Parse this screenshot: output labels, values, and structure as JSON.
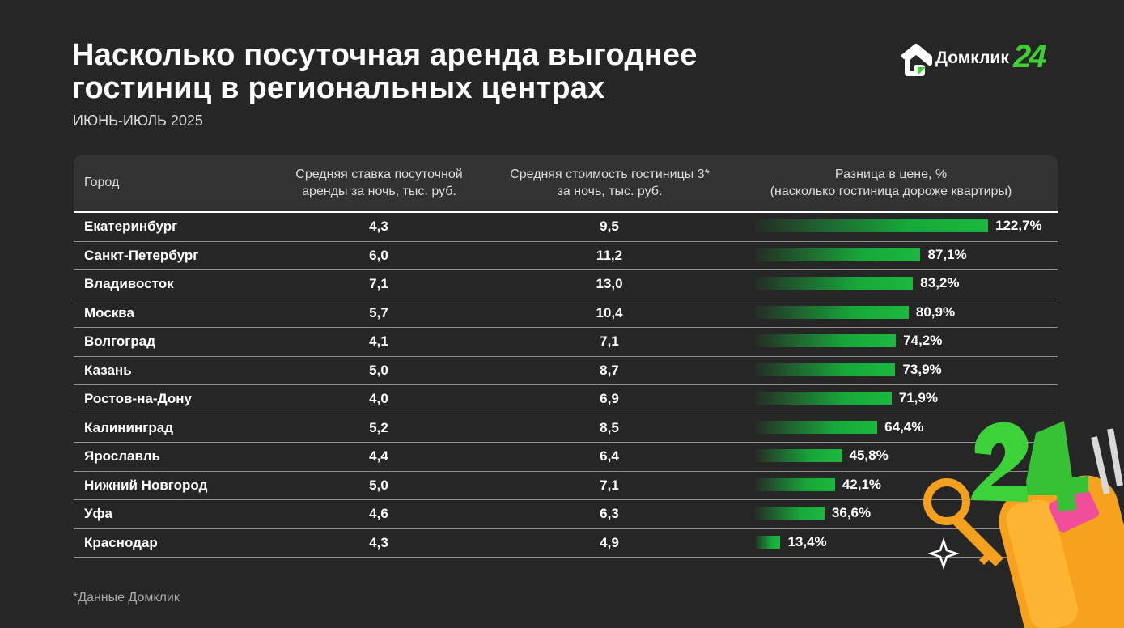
{
  "header": {
    "title_line1": "Насколько посуточная аренда выгоднее",
    "title_line2": "гостиниц в региональных центрах",
    "subtitle": "ИЮНЬ-ИЮЛЬ 2025"
  },
  "logo": {
    "text": "Домклик",
    "badge": "24",
    "accent": "#3fce33"
  },
  "table": {
    "headers": {
      "city": "Город",
      "rent_line1": "Средняя ставка посуточной",
      "rent_line2": "аренды за ночь, тыс. руб.",
      "hotel_line1": "Средняя стоимость гостиницы 3*",
      "hotel_line2": "за ночь, тыс. руб.",
      "diff_line1": "Разница в цене, %",
      "diff_line2": "(насколько гостиница дороже квартиры)"
    },
    "rows": [
      {
        "city": "Екатеринбург",
        "rent": "4,3",
        "hotel": "9,5",
        "diff_label": "122,7%"
      },
      {
        "city": "Санкт-Петербург",
        "rent": "6,0",
        "hotel": "11,2",
        "diff_label": "87,1%"
      },
      {
        "city": "Владивосток",
        "rent": "7,1",
        "hotel": "13,0",
        "diff_label": "83,2%"
      },
      {
        "city": "Москва",
        "rent": "5,7",
        "hotel": "10,4",
        "diff_label": "80,9%"
      },
      {
        "city": "Волгоград",
        "rent": "4,1",
        "hotel": "7,1",
        "diff_label": "74,2%"
      },
      {
        "city": "Казань",
        "rent": "5,0",
        "hotel": "8,7",
        "diff_label": "73,9%"
      },
      {
        "city": "Ростов-на-Дону",
        "rent": "4,0",
        "hotel": "6,9",
        "diff_label": "71,9%"
      },
      {
        "city": "Калининград",
        "rent": "5,2",
        "hotel": "8,5",
        "diff_label": "64,4%"
      },
      {
        "city": "Ярославль",
        "rent": "4,4",
        "hotel": "6,4",
        "diff_label": "45,8%"
      },
      {
        "city": "Нижний Новгород",
        "rent": "5,0",
        "hotel": "7,1",
        "diff_label": "42,1%"
      },
      {
        "city": "Уфа",
        "rent": "4,6",
        "hotel": "6,3",
        "diff_label": "36,6%"
      },
      {
        "city": "Краснодар",
        "rent": "4,3",
        "hotel": "4,9",
        "diff_label": "13,4%"
      }
    ]
  },
  "chart_data": {
    "type": "table",
    "columns": [
      "Город",
      "Средняя ставка посуточной аренды за ночь, тыс. руб.",
      "Средняя стоимость гостиницы 3* за ночь, тыс. руб.",
      "Разница в цене, % (насколько гостиница дороже квартиры)"
    ],
    "categories": [
      "Екатеринбург",
      "Санкт-Петербург",
      "Владивосток",
      "Москва",
      "Волгоград",
      "Казань",
      "Ростов-на-Дону",
      "Калининград",
      "Ярославль",
      "Нижний Новгород",
      "Уфа",
      "Краснодар"
    ],
    "series": [
      {
        "name": "Средняя ставка посуточной аренды за ночь, тыс. руб.",
        "values": [
          4.3,
          6.0,
          7.1,
          5.7,
          4.1,
          5.0,
          4.0,
          5.2,
          4.4,
          5.0,
          4.6,
          4.3
        ]
      },
      {
        "name": "Средняя стоимость гостиницы 3* за ночь, тыс. руб.",
        "values": [
          9.5,
          11.2,
          13.0,
          10.4,
          7.1,
          8.7,
          6.9,
          8.5,
          6.4,
          7.1,
          6.3,
          4.9
        ]
      },
      {
        "name": "Разница в цене, %",
        "values": [
          122.7,
          87.1,
          83.2,
          80.9,
          74.2,
          73.9,
          71.9,
          64.4,
          45.8,
          42.1,
          36.6,
          13.4
        ]
      }
    ],
    "bar_color": "#1bb83f"
  },
  "footnote": "*Данные Домклик"
}
